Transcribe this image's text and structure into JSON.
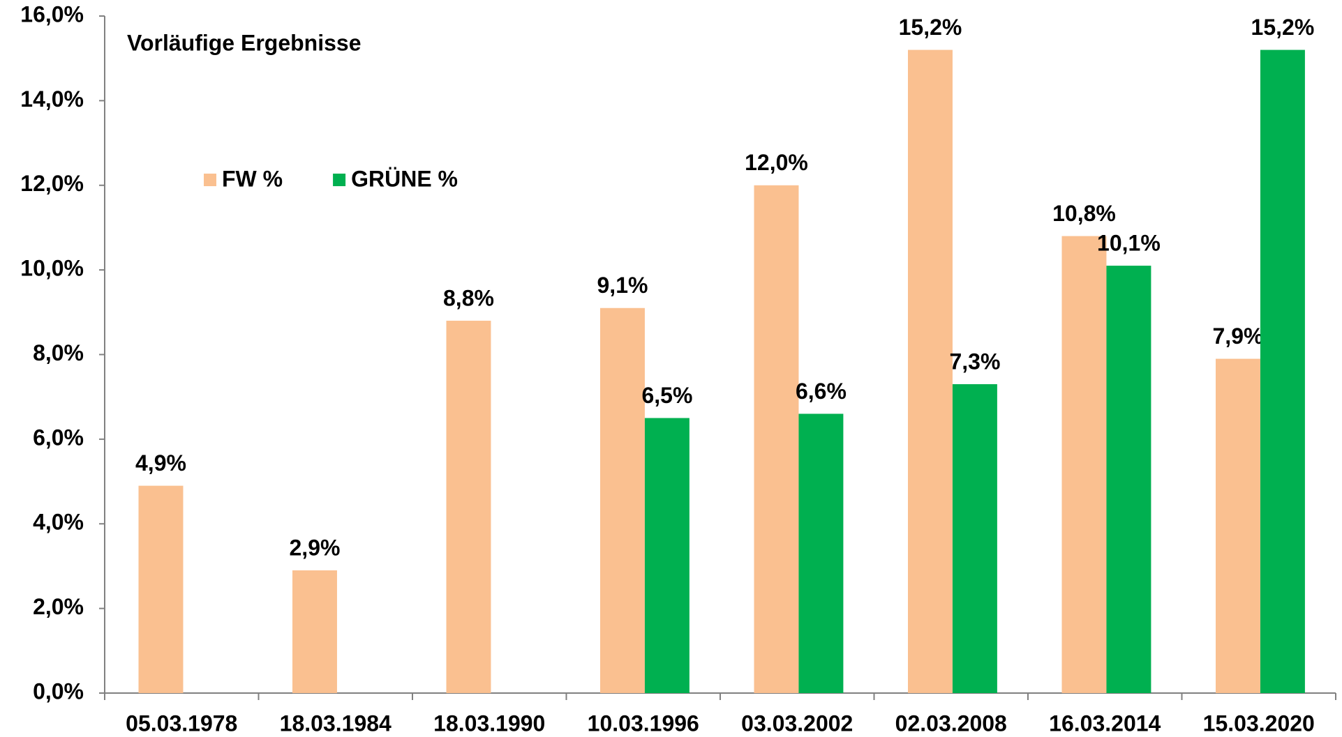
{
  "chart_data": {
    "type": "bar",
    "title": "Vorläufige Ergebnisse",
    "categories": [
      "05.03.1978",
      "18.03.1984",
      "18.03.1990",
      "10.03.1996",
      "03.03.2002",
      "02.03.2008",
      "16.03.2014",
      "15.03.2020"
    ],
    "series": [
      {
        "name": "FW %",
        "color": "#fac090",
        "values": [
          4.9,
          2.9,
          8.8,
          9.1,
          12.0,
          15.2,
          10.8,
          7.9
        ],
        "value_labels": [
          "4,9%",
          "2,9%",
          "8,8%",
          "9,1%",
          "12,0%",
          "15,2%",
          "10,8%",
          "7,9%"
        ]
      },
      {
        "name": "GRÜNE %",
        "color": "#00b050",
        "values": [
          null,
          null,
          null,
          6.5,
          6.6,
          7.3,
          10.1,
          15.2
        ],
        "value_labels": [
          null,
          null,
          null,
          "6,5%",
          "6,6%",
          "7,3%",
          "10,1%",
          "15,2%"
        ]
      }
    ],
    "ylim": [
      0,
      16
    ],
    "yticks": [
      {
        "value": 0,
        "label": "0,0%"
      },
      {
        "value": 2,
        "label": "2,0%"
      },
      {
        "value": 4,
        "label": "4,0%"
      },
      {
        "value": 6,
        "label": "6,0%"
      },
      {
        "value": 8,
        "label": "8,0%"
      },
      {
        "value": 10,
        "label": "10,0%"
      },
      {
        "value": 12,
        "label": "12,0%"
      },
      {
        "value": 14,
        "label": "14,0%"
      },
      {
        "value": 16,
        "label": "16,0%"
      }
    ],
    "grid": false,
    "legend": "top-left"
  }
}
